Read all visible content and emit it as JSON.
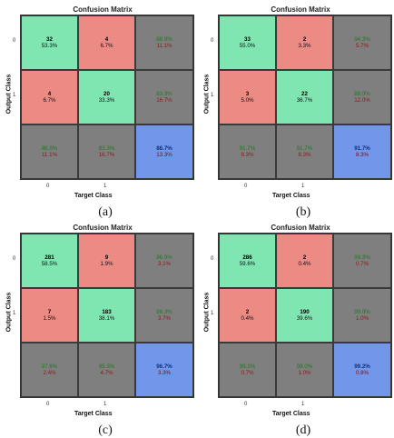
{
  "chart_data": [
    {
      "type": "heatmap",
      "caption": "(a)",
      "title": "Confusion Matrix",
      "xlabel": "Target Class",
      "ylabel": "Output Class",
      "x_ticks": [
        "0",
        "1"
      ],
      "y_ticks": [
        "0",
        "1"
      ],
      "matrix": [
        [
          {
            "count": "32",
            "pct": "53.3%"
          },
          {
            "count": "4",
            "pct": "6.7%"
          },
          {
            "pos": "88.9%",
            "neg": "11.1%"
          }
        ],
        [
          {
            "count": "4",
            "pct": "6.7%"
          },
          {
            "count": "20",
            "pct": "33.3%"
          },
          {
            "pos": "83.3%",
            "neg": "16.7%"
          }
        ],
        [
          {
            "pos": "88.9%",
            "neg": "11.1%"
          },
          {
            "pos": "83.3%",
            "neg": "16.7%"
          },
          {
            "pos": "86.7%",
            "neg": "13.3%"
          }
        ]
      ]
    },
    {
      "type": "heatmap",
      "caption": "(b)",
      "title": "Confusion Matrix",
      "xlabel": "Target Class",
      "ylabel": "Output Class",
      "x_ticks": [
        "0",
        "1"
      ],
      "y_ticks": [
        "0",
        "1"
      ],
      "matrix": [
        [
          {
            "count": "33",
            "pct": "55.0%"
          },
          {
            "count": "2",
            "pct": "3.3%"
          },
          {
            "pos": "94.3%",
            "neg": "5.7%"
          }
        ],
        [
          {
            "count": "3",
            "pct": "5.0%"
          },
          {
            "count": "22",
            "pct": "36.7%"
          },
          {
            "pos": "88.0%",
            "neg": "12.0%"
          }
        ],
        [
          {
            "pos": "91.7%",
            "neg": "8.3%"
          },
          {
            "pos": "91.7%",
            "neg": "8.3%"
          },
          {
            "pos": "91.7%",
            "neg": "8.3%"
          }
        ]
      ]
    },
    {
      "type": "heatmap",
      "caption": "(c)",
      "title": "Confusion Matrix",
      "xlabel": "Target Class",
      "ylabel": "Output Class",
      "x_ticks": [
        "0",
        "1"
      ],
      "y_ticks": [
        "0",
        "1"
      ],
      "matrix": [
        [
          {
            "count": "281",
            "pct": "58.5%"
          },
          {
            "count": "9",
            "pct": "1.9%"
          },
          {
            "pos": "96.9%",
            "neg": "3.1%"
          }
        ],
        [
          {
            "count": "7",
            "pct": "1.5%"
          },
          {
            "count": "183",
            "pct": "38.1%"
          },
          {
            "pos": "96.3%",
            "neg": "3.7%"
          }
        ],
        [
          {
            "pos": "97.6%",
            "neg": "2.4%"
          },
          {
            "pos": "95.3%",
            "neg": "4.7%"
          },
          {
            "pos": "96.7%",
            "neg": "3.3%"
          }
        ]
      ]
    },
    {
      "type": "heatmap",
      "caption": "(d)",
      "title": "Confusion Matrix",
      "xlabel": "Target Class",
      "ylabel": "Output Class",
      "x_ticks": [
        "0",
        "1"
      ],
      "y_ticks": [
        "0",
        "1"
      ],
      "matrix": [
        [
          {
            "count": "286",
            "pct": "59.6%"
          },
          {
            "count": "2",
            "pct": "0.4%"
          },
          {
            "pos": "99.3%",
            "neg": "0.7%"
          }
        ],
        [
          {
            "count": "2",
            "pct": "0.4%"
          },
          {
            "count": "190",
            "pct": "39.6%"
          },
          {
            "pos": "99.0%",
            "neg": "1.0%"
          }
        ],
        [
          {
            "pos": "99.3%",
            "neg": "0.7%"
          },
          {
            "pos": "99.0%",
            "neg": "1.0%"
          },
          {
            "pos": "99.2%",
            "neg": "0.8%"
          }
        ]
      ]
    }
  ]
}
